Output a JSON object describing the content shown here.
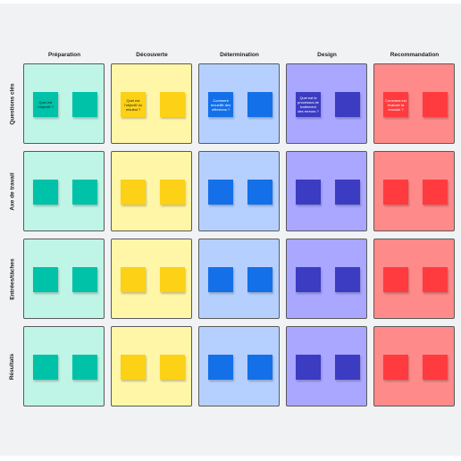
{
  "columns": [
    {
      "label": "Préparation",
      "frame_color": "#bff5e6",
      "note_color": "#00c2a8",
      "text_color": "#1f1f1f",
      "question": "Quel est l'objectif ?"
    },
    {
      "label": "Découverte",
      "frame_color": "#fff6a8",
      "note_color": "#fcd116",
      "text_color": "#1f1f1f",
      "question": "Quel est l'objectif du résultat ?"
    },
    {
      "label": "Détermination",
      "frame_color": "#b5d0ff",
      "note_color": "#1470e8",
      "text_color": "#ffffff",
      "question": "Comment recueillir des réflexions ?"
    },
    {
      "label": "Design",
      "frame_color": "#a9a7ff",
      "note_color": "#3b3cc2",
      "text_color": "#ffffff",
      "question": "Quel est le processus de traitement des erreurs ?"
    },
    {
      "label": "Recommandation",
      "frame_color": "#ff8a8a",
      "note_color": "#ff3b3f",
      "text_color": "#ffffff",
      "question": "Comment est évaluée la réussite ?"
    }
  ],
  "rows": [
    {
      "label": "Questions clés"
    },
    {
      "label": "Axe de travail"
    },
    {
      "label": "Entrées/tâches"
    },
    {
      "label": "Résultats"
    }
  ]
}
